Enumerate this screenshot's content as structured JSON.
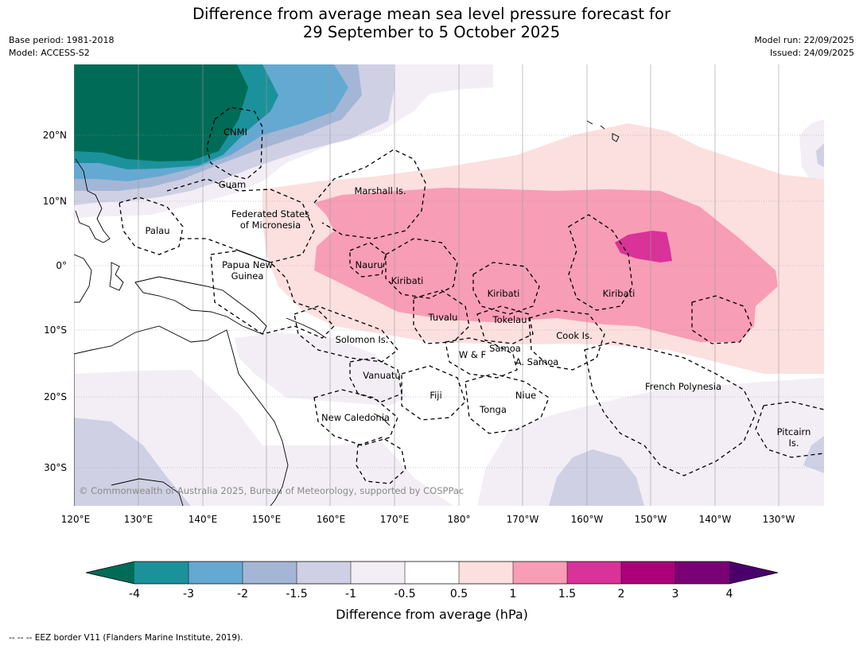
{
  "title_line1": "Difference from average mean sea level pressure forecast for",
  "title_line2": "29 September to 5 October 2025",
  "base_period": "Base period: 1981-2018",
  "model": "Model: ACCESS-S2",
  "model_run": "Model run: 22/09/2025",
  "issued": "Issued: 24/09/2025",
  "copyright": "© Commonwealth of Australia 2025, Bureau of Meteorology, supported by COSPPac",
  "footer": "--  --  -- EEZ border V11 (Flanders Marine Institute, 2019).",
  "lat_labels": [
    "20°N",
    "10°N",
    "0°",
    "10°S",
    "20°S",
    "30°S"
  ],
  "lon_labels": [
    "120°E",
    "130°E",
    "140°E",
    "150°E",
    "160°E",
    "170°E",
    "180°",
    "170°W",
    "160°W",
    "150°W",
    "140°W",
    "130°W"
  ],
  "regions": {
    "cnmi": "CNMI",
    "guam": "Guam",
    "marshall": "Marshall Is.",
    "fsm1": "Federated States",
    "fsm2": "of Micronesia",
    "palau": "Palau",
    "png1": "Papua New",
    "png2": "Guinea",
    "nauru": "Nauru",
    "kiribati1": "Kiribati",
    "kiribati2": "Kiribati",
    "kiribati3": "Kiribati",
    "tuvalu": "Tuvalu",
    "tokelau": "Tokelau",
    "cook": "Cook Is.",
    "solomon": "Solomon Is.",
    "samoa": "Samoa",
    "wf": "W & F",
    "asamoa": "A. Samoa",
    "vanuatu": "Vanuatu",
    "fiji": "Fiji",
    "niue": "Niue",
    "tonga": "Tonga",
    "newcal": "New Caledonia",
    "frpoly": "French Polynesia",
    "pitcairn1": "Pitcairn",
    "pitcairn2": "Is."
  },
  "colorbar": {
    "title": "Difference from average (hPa)",
    "ticks": [
      "-4",
      "-3",
      "-2",
      "-1.5",
      "-1",
      "-0.5",
      "0.5",
      "1",
      "1.5",
      "2",
      "3",
      "4"
    ],
    "colors": {
      "lt_m4": "#006b56",
      "m4_m3": "#1b929b",
      "m3_m2": "#64a9d2",
      "m2_m15": "#a4b6d6",
      "m15_m1": "#cfd0e4",
      "m1_m05": "#f3eef6",
      "neutral": "#ffffff",
      "p05_p1": "#fcdfdf",
      "p1_p15": "#f89db6",
      "p15_p2": "#d93299",
      "p2_p3": "#ac0079",
      "p3_p4": "#7a0076",
      "gt_p4": "#4a006a"
    }
  }
}
